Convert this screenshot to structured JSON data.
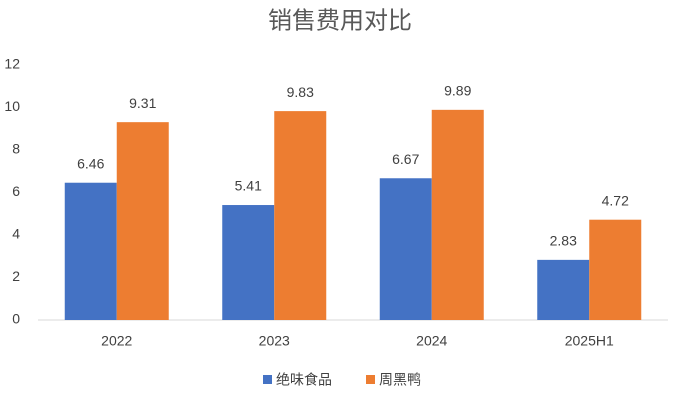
{
  "chart_data": {
    "type": "bar",
    "title": "销售费用对比",
    "categories": [
      "2022",
      "2023",
      "2024",
      "2025H1"
    ],
    "series": [
      {
        "name": "绝味食品",
        "color": "#4472c4",
        "values": [
          6.46,
          5.41,
          6.67,
          2.83
        ]
      },
      {
        "name": "周黑鸭",
        "color": "#ed7d31",
        "values": [
          9.31,
          9.83,
          9.89,
          4.72
        ]
      }
    ],
    "ylim": [
      0,
      12
    ],
    "yticks": [
      0,
      2,
      4,
      6,
      8,
      10,
      12
    ],
    "grid": false,
    "legend": "bottom"
  }
}
